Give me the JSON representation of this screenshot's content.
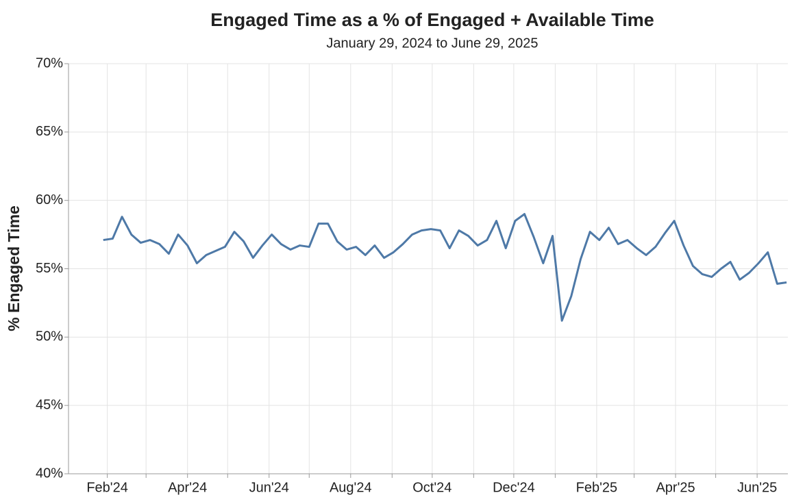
{
  "chart_data": {
    "type": "line",
    "title": "Engaged Time as a % of Engaged + Available Time",
    "subtitle": "January 29, 2024 to June 29, 2025",
    "y_label": "% Engaged Time",
    "x": [
      "2024-01-29",
      "2024-02-05",
      "2024-02-12",
      "2024-02-19",
      "2024-02-26",
      "2024-03-04",
      "2024-03-11",
      "2024-03-18",
      "2024-03-25",
      "2024-04-01",
      "2024-04-08",
      "2024-04-15",
      "2024-04-22",
      "2024-04-29",
      "2024-05-06",
      "2024-05-13",
      "2024-05-20",
      "2024-05-27",
      "2024-06-03",
      "2024-06-10",
      "2024-06-17",
      "2024-06-24",
      "2024-07-01",
      "2024-07-08",
      "2024-07-15",
      "2024-07-22",
      "2024-07-29",
      "2024-08-05",
      "2024-08-12",
      "2024-08-19",
      "2024-08-26",
      "2024-09-02",
      "2024-09-09",
      "2024-09-16",
      "2024-09-23",
      "2024-09-30",
      "2024-10-07",
      "2024-10-14",
      "2024-10-21",
      "2024-10-28",
      "2024-11-04",
      "2024-11-11",
      "2024-11-18",
      "2024-11-25",
      "2024-12-02",
      "2024-12-09",
      "2024-12-16",
      "2024-12-23",
      "2024-12-30",
      "2025-01-06",
      "2025-01-13",
      "2025-01-20",
      "2025-01-27",
      "2025-02-03",
      "2025-02-10",
      "2025-02-17",
      "2025-02-24",
      "2025-03-03",
      "2025-03-10",
      "2025-03-17",
      "2025-03-24",
      "2025-03-31",
      "2025-04-07",
      "2025-04-14",
      "2025-04-21",
      "2025-04-28",
      "2025-05-05",
      "2025-05-12",
      "2025-05-19",
      "2025-05-26",
      "2025-06-02",
      "2025-06-09",
      "2025-06-16",
      "2025-06-23"
    ],
    "series": [
      {
        "name": "% Engaged Time",
        "color": "#4e79a7",
        "values": [
          57.1,
          57.2,
          58.8,
          57.5,
          56.9,
          57.1,
          56.8,
          56.1,
          57.5,
          56.7,
          55.4,
          56.0,
          56.3,
          56.6,
          57.7,
          57.0,
          55.8,
          56.7,
          57.5,
          56.8,
          56.4,
          56.7,
          56.6,
          58.3,
          58.3,
          57.0,
          56.4,
          56.6,
          56.0,
          56.7,
          55.8,
          56.2,
          56.8,
          57.5,
          57.8,
          57.9,
          57.8,
          56.5,
          57.8,
          57.4,
          56.7,
          57.1,
          58.5,
          56.5,
          58.5,
          59.0,
          57.3,
          55.4,
          57.4,
          51.2,
          53.0,
          55.7,
          57.7,
          57.1,
          58.0,
          56.8,
          57.1,
          56.5,
          56.0,
          56.6,
          57.6,
          58.5,
          56.7,
          55.2,
          54.6,
          54.4,
          55.0,
          55.5,
          54.2,
          54.7,
          55.4,
          56.2,
          53.9,
          54.0
        ]
      }
    ],
    "xlim": [
      "2024-01-03",
      "2025-06-24"
    ],
    "xticks": [
      {
        "value": "2024-02-01",
        "label": "Feb'24"
      },
      {
        "value": "2024-03-01",
        "label": null
      },
      {
        "value": "2024-04-01",
        "label": "Apr'24"
      },
      {
        "value": "2024-05-01",
        "label": null
      },
      {
        "value": "2024-06-01",
        "label": "Jun'24"
      },
      {
        "value": "2024-07-01",
        "label": null
      },
      {
        "value": "2024-08-01",
        "label": "Aug'24"
      },
      {
        "value": "2024-09-01",
        "label": null
      },
      {
        "value": "2024-10-01",
        "label": "Oct'24"
      },
      {
        "value": "2024-11-01",
        "label": null
      },
      {
        "value": "2024-12-01",
        "label": "Dec'24"
      },
      {
        "value": "2025-01-01",
        "label": null
      },
      {
        "value": "2025-02-01",
        "label": "Feb'25"
      },
      {
        "value": "2025-03-01",
        "label": null
      },
      {
        "value": "2025-04-01",
        "label": "Apr'25"
      },
      {
        "value": "2025-05-01",
        "label": null
      },
      {
        "value": "2025-06-01",
        "label": "Jun'25"
      }
    ],
    "ylim": [
      40,
      70
    ],
    "yticks": [
      {
        "value": 40,
        "label": "40%"
      },
      {
        "value": 45,
        "label": "45%"
      },
      {
        "value": 50,
        "label": "50%"
      },
      {
        "value": 55,
        "label": "55%"
      },
      {
        "value": 60,
        "label": "60%"
      },
      {
        "value": 65,
        "label": "65%"
      },
      {
        "value": 70,
        "label": "70%"
      }
    ],
    "grid": true
  }
}
